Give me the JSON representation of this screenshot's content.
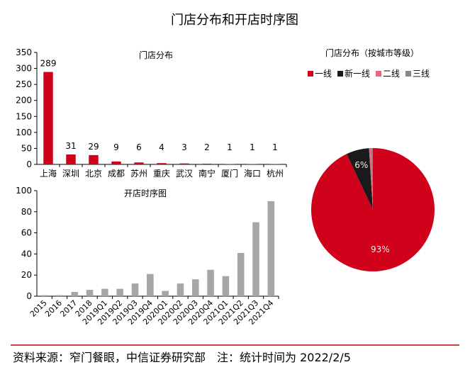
{
  "title": "门店分布和开店时序图",
  "footer": "资料来源：窄门餐眼，中信证券研究部　注：统计时间为 2022/2/5",
  "accent_color": "#c00000",
  "chart_data": [
    {
      "type": "bar",
      "title": "门店分布",
      "categories": [
        "上海",
        "深圳",
        "北京",
        "成都",
        "苏州",
        "重庆",
        "武汉",
        "南宁",
        "厦门",
        "海口",
        "杭州"
      ],
      "values": [
        289,
        31,
        29,
        9,
        6,
        4,
        3,
        2,
        1,
        1,
        1
      ],
      "data_labels": [
        "289",
        "31",
        "29",
        "9",
        "6",
        "4",
        "3",
        "2",
        "1",
        "1",
        "1"
      ],
      "ylim": [
        0,
        350
      ],
      "yticks": [
        0,
        50,
        100,
        150,
        200,
        250,
        300,
        350
      ],
      "color": "#d0021b",
      "grid": false
    },
    {
      "type": "bar",
      "title": "开店时序图",
      "categories": [
        "2015",
        "2016",
        "2017",
        "2018",
        "2019Q1",
        "2019Q2",
        "2019Q3",
        "2019Q4",
        "2020Q1",
        "2020Q2",
        "2020Q3",
        "2020Q4",
        "2021Q1",
        "2021Q2",
        "2021Q3",
        "2021Q4"
      ],
      "values": [
        1,
        1,
        4,
        6,
        7,
        7,
        12,
        21,
        5,
        12,
        16,
        25,
        19,
        41,
        70,
        90
      ],
      "ylim": [
        0,
        100
      ],
      "yticks": [
        0,
        20,
        40,
        60,
        80,
        100
      ],
      "color": "#a6a6a6",
      "grid": false
    },
    {
      "type": "pie",
      "title": "门店分布（按城市等级）",
      "legend_position": "top",
      "labels": [
        "一线",
        "新一线",
        "二线",
        "三线"
      ],
      "values": [
        93,
        6,
        0.5,
        0.5
      ],
      "data_labels": [
        "93%",
        "6%",
        "",
        ""
      ],
      "colors": [
        "#d0021b",
        "#1a1a1a",
        "#f06080",
        "#888888"
      ]
    }
  ]
}
